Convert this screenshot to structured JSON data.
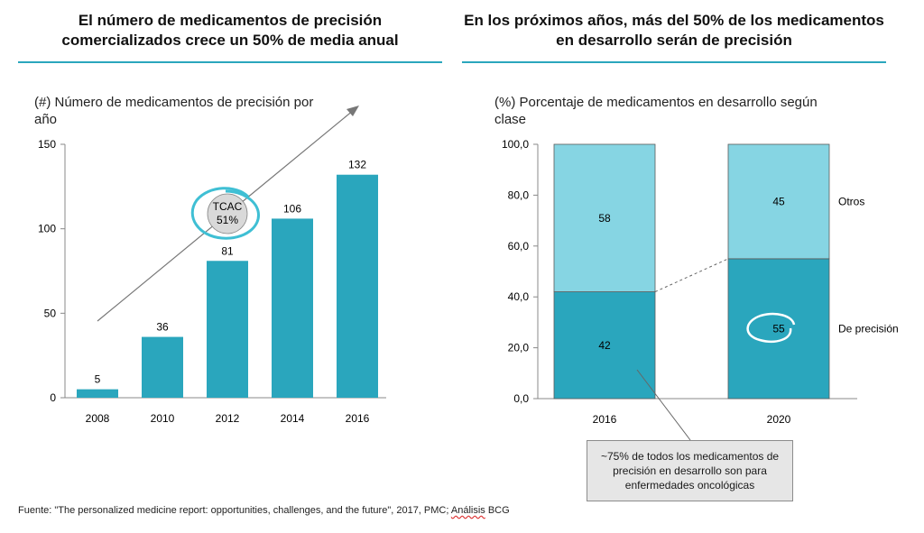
{
  "left": {
    "title": "El número de medicamentos de precisión comercializados crece un 50% de media anual",
    "subtitle": "(#) Número de medicamentos de precisión por año",
    "annotation": {
      "line1": "TCAC",
      "line2": "51%"
    }
  },
  "right": {
    "title": "En los próximos años, más del 50% de los medicamentos en desarrollo serán de precisión",
    "subtitle": "(%) Porcentaje de medicamentos en desarrollo según clase",
    "callout": "~75% de todos los medicamentos de precisión en desarrollo son para enfermedades oncológicas"
  },
  "source": {
    "prefix": "Fuente: \"The personalized medicine report: opportunities, challenges, and the future\", 2017, PMC; ",
    "highlight": "Análisis",
    "suffix": " BCG"
  },
  "colors": {
    "bar": "#2aa6bd",
    "bar_light": "#86d5e3",
    "accent_line": "#2aa6bd",
    "arrow": "#777777",
    "bubble": "#d9d9d9"
  },
  "chart_data": [
    {
      "type": "bar",
      "categories": [
        "2008",
        "2010",
        "2012",
        "2014",
        "2016"
      ],
      "values": [
        5,
        36,
        81,
        106,
        132
      ],
      "ylim": [
        0,
        150
      ],
      "yticks": [
        "0",
        "50",
        "100",
        "150"
      ],
      "data_labels": true,
      "grid": false
    },
    {
      "type": "bar",
      "stacked": true,
      "categories": [
        "2016",
        "2020"
      ],
      "series": [
        {
          "name": "De precisión",
          "values": [
            42,
            55
          ],
          "color": "#2aa6bd"
        },
        {
          "name": "Otros",
          "values": [
            58,
            45
          ],
          "color": "#86d5e3"
        }
      ],
      "ylim": [
        0,
        100
      ],
      "yticks": [
        "0,0",
        "20,0",
        "40,0",
        "60,0",
        "80,0",
        "100,0"
      ],
      "legend": "right",
      "grid": false
    }
  ]
}
